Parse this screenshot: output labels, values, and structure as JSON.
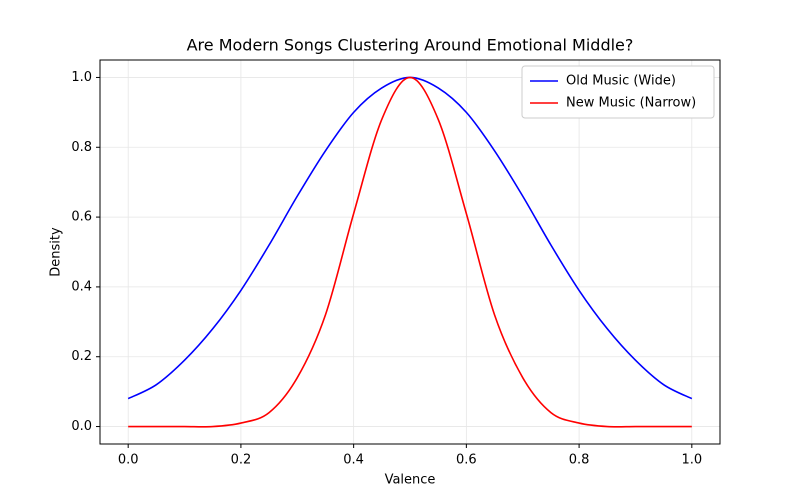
{
  "chart_data": {
    "type": "line",
    "title": "Are Modern Songs Clustering Around Emotional Middle?",
    "x_label": "Valence",
    "y_label": "Density",
    "x": [
      0,
      0.05,
      0.1,
      0.15,
      0.2,
      0.25,
      0.3,
      0.35,
      0.4,
      0.45,
      0.5,
      0.55,
      0.6,
      0.65,
      0.7,
      0.75,
      0.8,
      0.85,
      0.9,
      0.95,
      1
    ],
    "series": [
      {
        "name": "Old Music (Wide)",
        "color": "#0000ff",
        "values": [
          0.08,
          0.12,
          0.19,
          0.28,
          0.39,
          0.52,
          0.66,
          0.79,
          0.9,
          0.97,
          1,
          0.97,
          0.9,
          0.79,
          0.66,
          0.52,
          0.39,
          0.28,
          0.19,
          0.12,
          0.08
        ]
      },
      {
        "name": "New Music (Narrow)",
        "color": "#ff0000",
        "values": [
          0,
          0,
          0,
          0,
          0.01,
          0.04,
          0.14,
          0.32,
          0.61,
          0.88,
          1,
          0.88,
          0.61,
          0.32,
          0.14,
          0.04,
          0.01,
          0,
          0,
          0,
          0
        ]
      }
    ],
    "xlim": [
      -0.05,
      1.05
    ],
    "ylim": [
      -0.05,
      1.05
    ],
    "xticks": [
      {
        "value": 0,
        "label": "0.0"
      },
      0.2,
      0.4,
      0.6,
      0.8,
      {
        "value": 1,
        "label": "1.0"
      }
    ],
    "yticks": [
      {
        "value": 0,
        "label": "0.0"
      },
      0.2,
      0.4,
      0.6,
      0.8,
      {
        "value": 1,
        "label": "1.0"
      }
    ],
    "grid": true,
    "legend": "upper right"
  }
}
